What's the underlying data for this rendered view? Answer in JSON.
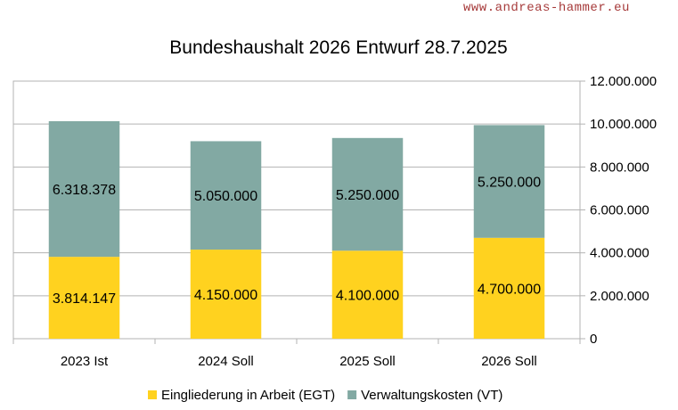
{
  "watermark": "www.andreas-hammer.eu",
  "chart_data": {
    "type": "bar",
    "stacked": true,
    "title": "Bundeshaushalt 2026 Entwurf 28.7.2025",
    "xlabel": "",
    "ylabel": "",
    "categories": [
      "2023 Ist",
      "2024 Soll",
      "2025 Soll",
      "2026 Soll"
    ],
    "series": [
      {
        "name": "Eingliederung in Arbeit (EGT)",
        "color": "#FFD21F",
        "values": [
          3814147,
          4150000,
          4100000,
          4700000
        ],
        "labels": [
          "3.814.147",
          "4.150.000",
          "4.100.000",
          "4.700.000"
        ]
      },
      {
        "name": "Verwaltungskosten (VT)",
        "color": "#82A9A3",
        "values": [
          6318378,
          5050000,
          5250000,
          5250000
        ],
        "labels": [
          "6.318.378",
          "5.050.000",
          "5.250.000",
          "5.250.000"
        ]
      }
    ],
    "ylim": [
      0,
      12000000
    ],
    "yticks": [
      0,
      2000000,
      4000000,
      6000000,
      8000000,
      10000000,
      12000000
    ],
    "ytick_labels": [
      "0",
      "2.000.000",
      "4.000.000",
      "6.000.000",
      "8.000.000",
      "10.000.000",
      "12.000.000"
    ],
    "y_axis_side": "right",
    "grid": true,
    "legend": "bottom"
  }
}
